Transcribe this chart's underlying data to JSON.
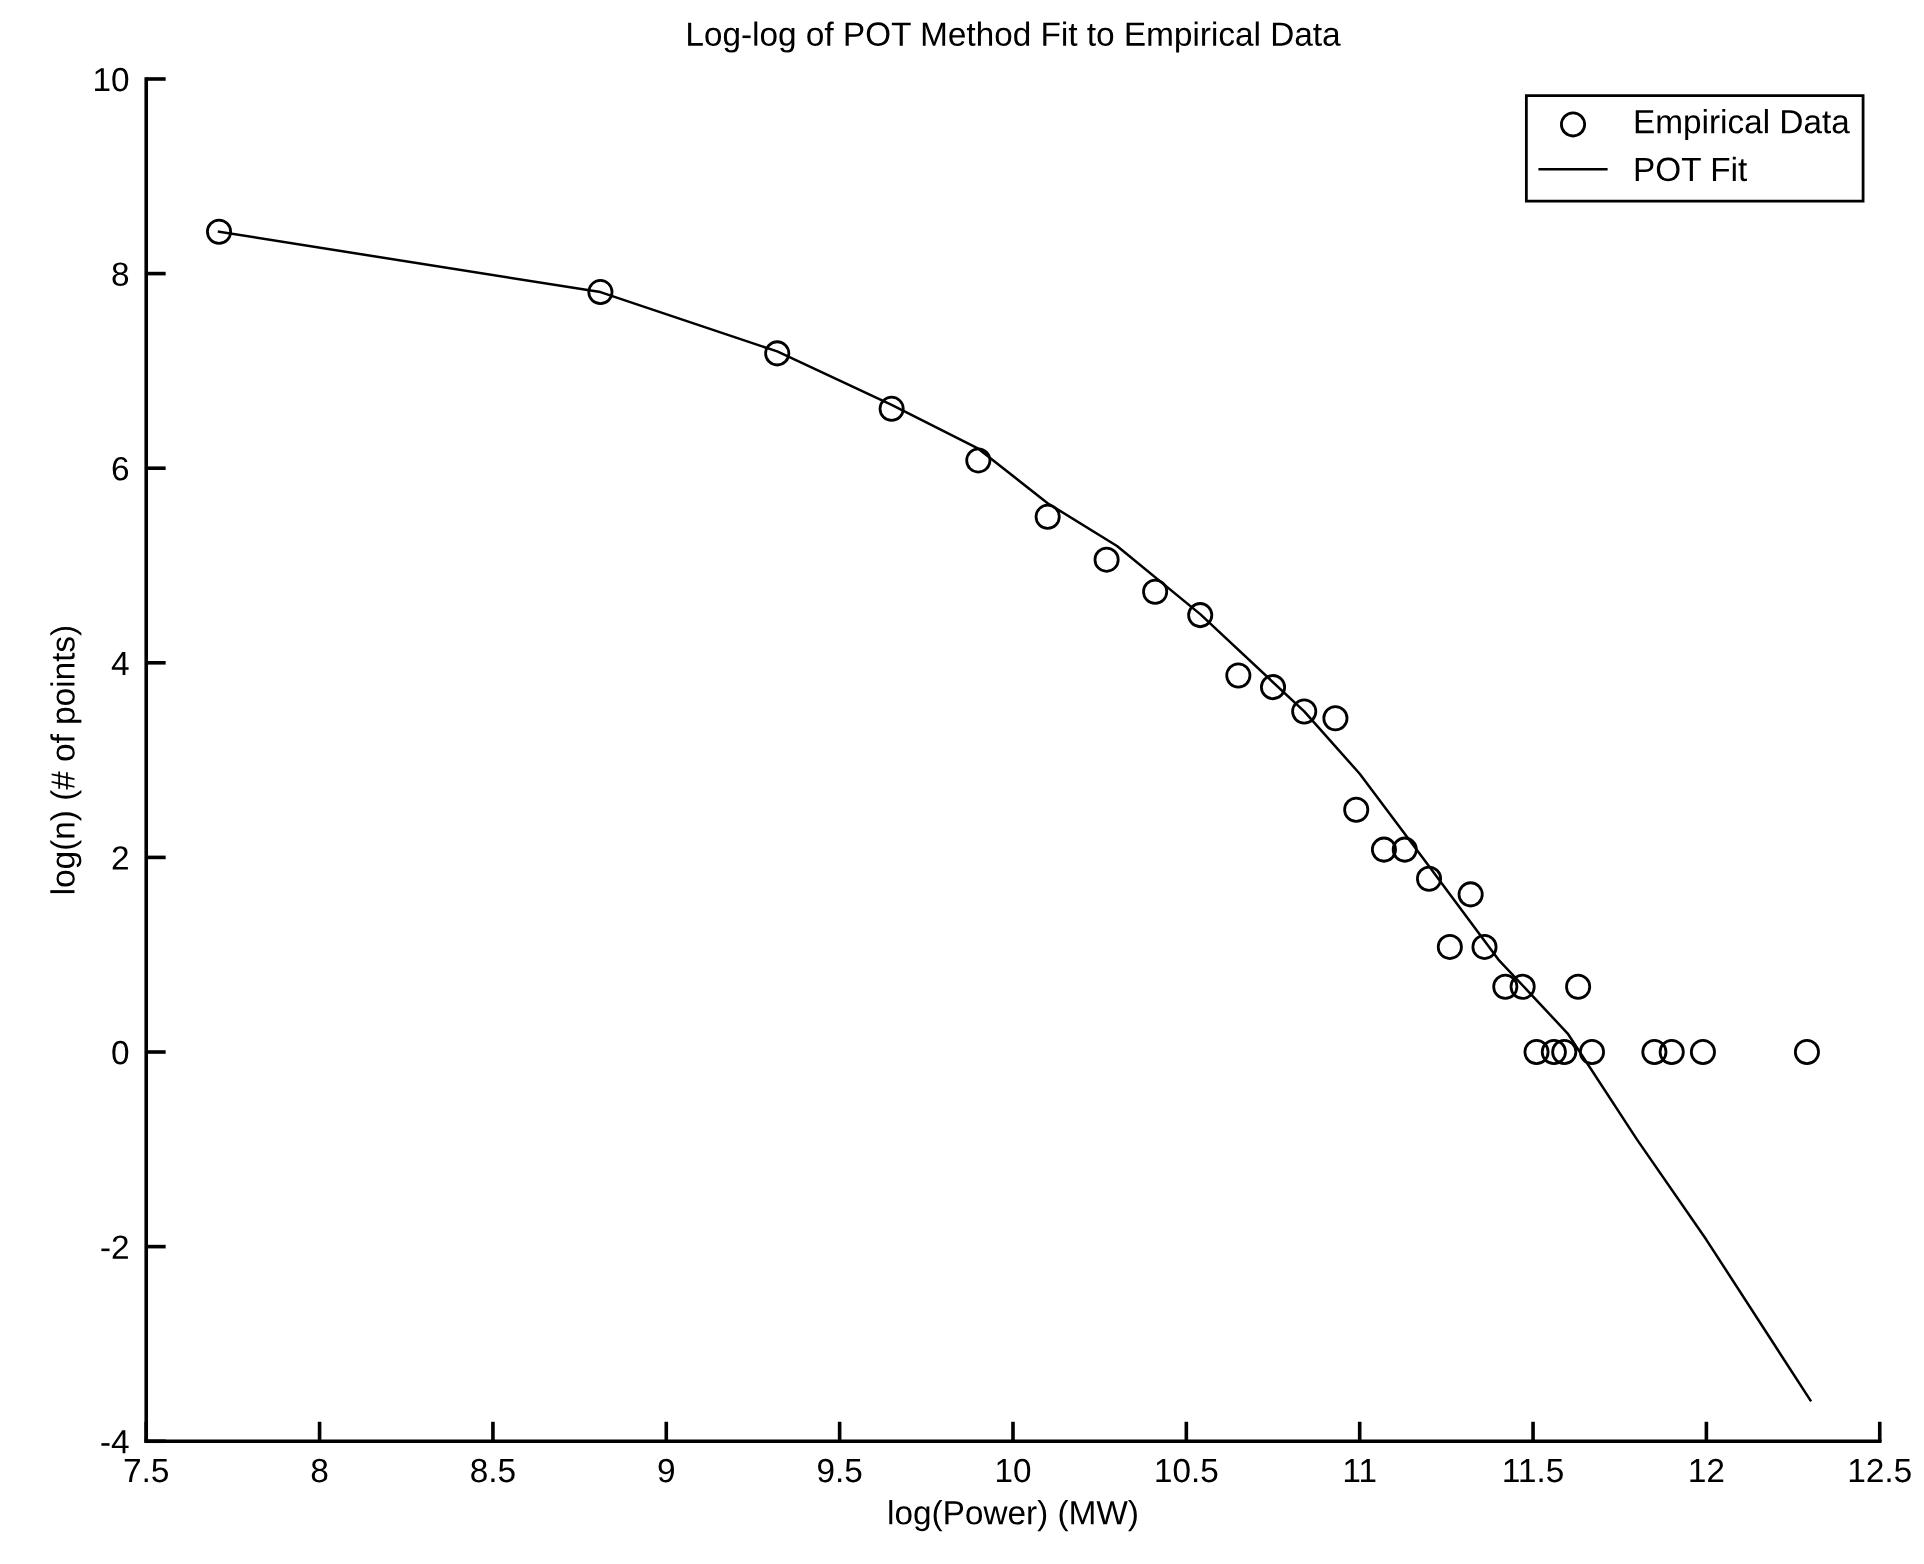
{
  "chart_data": {
    "type": "scatter",
    "title": "Log-log of POT Method Fit to Empirical Data",
    "xlabel": "log(Power) (MW)",
    "ylabel": "log(n) (# of points)",
    "xlim": [
      7.5,
      12.5
    ],
    "xticks": [
      7.5,
      8,
      8.5,
      9,
      9.5,
      10,
      10.5,
      11,
      11.5,
      12,
      12.5
    ],
    "ylim": [
      -4,
      10
    ],
    "yticks": [
      -4,
      -2,
      0,
      2,
      4,
      6,
      8,
      10
    ],
    "grid": false,
    "legend": "top right",
    "series": [
      {
        "name": "Empirical Data",
        "marker": "circle",
        "color": "#000000",
        "x": [
          7.71,
          8.81,
          9.32,
          9.65,
          9.9,
          10.1,
          10.27,
          10.41,
          10.54,
          10.65,
          10.75,
          10.84,
          10.93,
          10.99,
          11.07,
          11.13,
          11.2,
          11.26,
          11.32,
          11.36,
          11.42,
          11.47,
          11.63,
          11.51,
          11.56,
          11.59,
          11.67,
          11.85,
          11.9,
          11.99,
          12.29
        ],
        "values": [
          8.43,
          7.81,
          7.18,
          6.61,
          6.08,
          5.5,
          5.06,
          4.73,
          4.49,
          3.87,
          3.75,
          3.5,
          3.43,
          2.49,
          2.08,
          2.08,
          1.78,
          1.08,
          1.62,
          1.08,
          0.67,
          0.67,
          0.67,
          0,
          0,
          0,
          0,
          0,
          0,
          0,
          0
        ]
      },
      {
        "name": "POT Fit",
        "type": "line",
        "line_style": "solid",
        "color": "#000000",
        "x": [
          7.71,
          8.81,
          9.32,
          9.65,
          9.9,
          10.1,
          10.3,
          10.54,
          10.84,
          11.0,
          11.2,
          11.4,
          11.6,
          11.8,
          12.0,
          12.3
        ],
        "values": [
          8.43,
          7.81,
          7.2,
          6.65,
          6.2,
          5.64,
          5.2,
          4.5,
          3.5,
          2.86,
          1.91,
          0.95,
          0.19,
          -0.9,
          -1.93,
          -3.58
        ]
      }
    ]
  }
}
